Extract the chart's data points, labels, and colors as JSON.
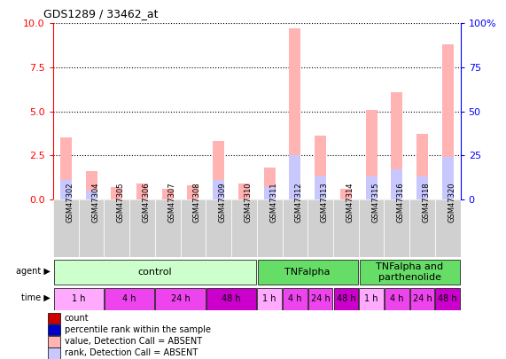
{
  "title": "GDS1289 / 33462_at",
  "samples": [
    "GSM47302",
    "GSM47304",
    "GSM47305",
    "GSM47306",
    "GSM47307",
    "GSM47308",
    "GSM47309",
    "GSM47310",
    "GSM47311",
    "GSM47312",
    "GSM47313",
    "GSM47314",
    "GSM47315",
    "GSM47316",
    "GSM47318",
    "GSM47320"
  ],
  "bar_values": [
    3.5,
    1.6,
    0.7,
    0.9,
    0.6,
    0.8,
    3.3,
    0.9,
    1.8,
    9.7,
    3.6,
    0.6,
    5.1,
    6.1,
    3.7,
    8.8
  ],
  "blue_values": [
    1.1,
    0.5,
    0.0,
    0.0,
    0.0,
    0.0,
    1.1,
    0.0,
    0.7,
    2.5,
    1.3,
    0.0,
    1.3,
    1.7,
    1.3,
    2.4
  ],
  "ylim": [
    0,
    10
  ],
  "yticks": [
    0,
    2.5,
    5.0,
    7.5,
    10
  ],
  "y2ticks": [
    0,
    25,
    50,
    75,
    100
  ],
  "color_absent_bar": "#ffb3b3",
  "color_absent_rank": "#c8c8ff",
  "color_count": "#cc0000",
  "color_rank": "#0000cc",
  "agent_groups": [
    {
      "label": "control",
      "start": 0,
      "end": 8,
      "color": "#ccffcc"
    },
    {
      "label": "TNFalpha",
      "start": 8,
      "end": 12,
      "color": "#66dd66"
    },
    {
      "label": "TNFalpha and\nparthenolide",
      "start": 12,
      "end": 16,
      "color": "#66dd66"
    }
  ],
  "time_groups": [
    {
      "label": "1 h",
      "start": 0,
      "end": 2,
      "color": "#ffaaff"
    },
    {
      "label": "4 h",
      "start": 2,
      "end": 4,
      "color": "#ee44ee"
    },
    {
      "label": "24 h",
      "start": 4,
      "end": 6,
      "color": "#ee44ee"
    },
    {
      "label": "48 h",
      "start": 6,
      "end": 8,
      "color": "#cc00cc"
    },
    {
      "label": "1 h",
      "start": 8,
      "end": 9,
      "color": "#ffaaff"
    },
    {
      "label": "4 h",
      "start": 9,
      "end": 10,
      "color": "#ee44ee"
    },
    {
      "label": "24 h",
      "start": 10,
      "end": 11,
      "color": "#ee44ee"
    },
    {
      "label": "48 h",
      "start": 11,
      "end": 12,
      "color": "#cc00cc"
    },
    {
      "label": "1 h",
      "start": 12,
      "end": 13,
      "color": "#ffaaff"
    },
    {
      "label": "4 h",
      "start": 13,
      "end": 14,
      "color": "#ee44ee"
    },
    {
      "label": "24 h",
      "start": 14,
      "end": 15,
      "color": "#ee44ee"
    },
    {
      "label": "48 h",
      "start": 15,
      "end": 16,
      "color": "#cc00cc"
    }
  ],
  "legend_items": [
    {
      "label": "count",
      "color": "#cc0000"
    },
    {
      "label": "percentile rank within the sample",
      "color": "#0000cc"
    },
    {
      "label": "value, Detection Call = ABSENT",
      "color": "#ffb3b3"
    },
    {
      "label": "rank, Detection Call = ABSENT",
      "color": "#c8c8ff"
    }
  ],
  "bg_sample_label": "#d0d0d0",
  "bg_figure": "#ffffff"
}
